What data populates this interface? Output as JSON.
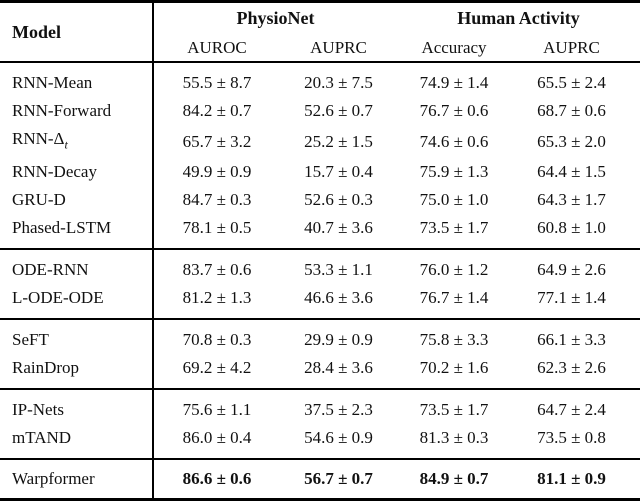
{
  "colors": {
    "background": "#ffffff",
    "text": "#111111",
    "rule": "#000000"
  },
  "table": {
    "header": {
      "model": "Model",
      "physionet": "PhysioNet",
      "human_activity": "Human Activity",
      "subcolumns": [
        "AUROC",
        "AUPRC",
        "Accuracy",
        "AUPRC"
      ]
    },
    "value_column_names": [
      "physionet-auroc",
      "physionet-auprc",
      "human-activity-accuracy",
      "human-activity-auprc"
    ],
    "groups": [
      {
        "rows": [
          {
            "model": "RNN-Mean",
            "values": [
              "55.5 ± 8.7",
              "20.3 ± 7.5",
              "74.9 ± 1.4",
              "65.5 ± 2.4"
            ]
          },
          {
            "model": "RNN-Forward",
            "values": [
              "84.2 ± 0.7",
              "52.6 ± 0.7",
              "76.7 ± 0.6",
              "68.7 ± 0.6"
            ]
          },
          {
            "model": "RNN-Δ",
            "model_sub": "t",
            "values": [
              "65.7 ± 3.2",
              "25.2 ± 1.5",
              "74.6 ± 0.6",
              "65.3 ± 2.0"
            ]
          },
          {
            "model": "RNN-Decay",
            "values": [
              "49.9 ± 0.9",
              "15.7 ± 0.4",
              "75.9 ± 1.3",
              "64.4 ± 1.5"
            ]
          },
          {
            "model": "GRU-D",
            "values": [
              "84.7 ± 0.3",
              "52.6 ± 0.3",
              "75.0 ± 1.0",
              "64.3 ± 1.7"
            ]
          },
          {
            "model": "Phased-LSTM",
            "values": [
              "78.1 ± 0.5",
              "40.7 ± 3.6",
              "73.5 ± 1.7",
              "60.8 ± 1.0"
            ]
          }
        ]
      },
      {
        "rows": [
          {
            "model": "ODE-RNN",
            "values": [
              "83.7 ± 0.6",
              "53.3 ± 1.1",
              "76.0 ± 1.2",
              "64.9 ± 2.6"
            ]
          },
          {
            "model": "L-ODE-ODE",
            "values": [
              "81.2 ± 1.3",
              "46.6 ± 3.6",
              "76.7 ± 1.4",
              "77.1 ± 1.4"
            ]
          }
        ]
      },
      {
        "rows": [
          {
            "model": "SeFT",
            "values": [
              "70.8 ± 0.3",
              "29.9 ± 0.9",
              "75.8 ± 3.3",
              "66.1 ± 3.3"
            ]
          },
          {
            "model": "RainDrop",
            "values": [
              "69.2 ± 4.2",
              "28.4 ± 3.6",
              "70.2 ± 1.6",
              "62.3 ± 2.6"
            ]
          }
        ]
      },
      {
        "rows": [
          {
            "model": "IP-Nets",
            "values": [
              "75.6 ± 1.1",
              "37.5 ± 2.3",
              "73.5 ± 1.7",
              "64.7 ± 2.4"
            ]
          },
          {
            "model": "mTAND",
            "values": [
              "86.0 ± 0.4",
              "54.6 ± 0.9",
              "81.3 ± 0.3",
              "73.5 ± 0.8"
            ]
          }
        ]
      },
      {
        "rows": [
          {
            "model": "Warpformer",
            "bold": true,
            "values": [
              "86.6 ± 0.6",
              "56.7 ± 0.7",
              "84.9 ± 0.7",
              "81.1 ± 0.9"
            ]
          }
        ]
      }
    ]
  }
}
